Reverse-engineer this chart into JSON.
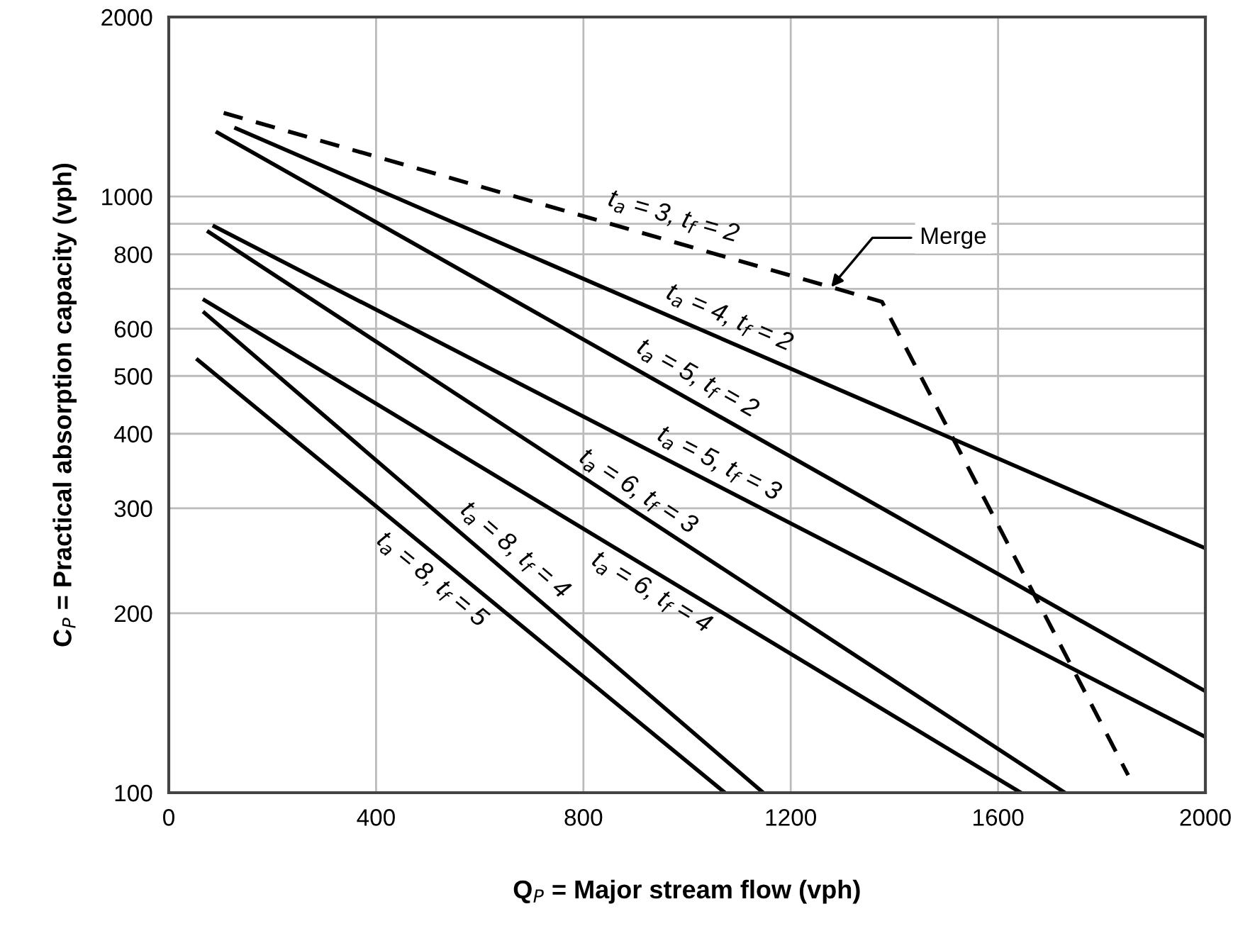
{
  "chart_data": {
    "type": "line",
    "xlabel": "Q$_{P}$ = Major stream flow (vph)",
    "ylabel": "C$_{P}$ = Practical absorption capacity (vph)",
    "log": "y",
    "xlim": [
      0,
      2000
    ],
    "ylim": [
      100,
      2000
    ],
    "xticks": [
      0,
      400,
      800,
      1200,
      1600,
      2000
    ],
    "yticks": [
      100,
      200,
      300,
      400,
      500,
      600,
      {
        "value": 700,
        "label": null
      },
      800,
      {
        "value": 900,
        "label": null
      },
      1000,
      2000
    ],
    "grid": true,
    "marker": "none",
    "series": [
      {
        "name": "t$_{a}$ = 3, t$_{f}$ = 2",
        "color": "#000000",
        "line_style": "dashed",
        "x": [
          106,
          1376,
          1851
        ],
        "values": [
          1381,
          666,
          107
        ]
      },
      {
        "name": "t$_{a}$ = 4, t$_{f}$ = 2",
        "color": "#000000",
        "line_style": "solid",
        "x": [
          130,
          2000
        ],
        "values": [
          1301,
          257
        ]
      },
      {
        "name": "t$_{a}$ = 5, t$_{f}$ = 2",
        "color": "#000000",
        "line_style": "solid",
        "x": [
          94,
          2000
        ],
        "values": [
          1280,
          148
        ]
      },
      {
        "name": "t$_{a}$ = 5, t$_{f}$ = 3",
        "color": "#000000",
        "line_style": "solid",
        "x": [
          88,
          2000
        ],
        "values": [
          891,
          124
        ]
      },
      {
        "name": "t$_{a}$ = 6, t$_{f}$ = 3",
        "color": "#000000",
        "line_style": "solid",
        "x": [
          77,
          1729
        ],
        "values": [
          872,
          100
        ]
      },
      {
        "name": "t$_{a}$ = 6, t$_{f}$ = 4",
        "color": "#000000",
        "line_style": "solid",
        "x": [
          69,
          1644
        ],
        "values": [
          670,
          100
        ]
      },
      {
        "name": "t$_{a}$ = 8, t$_{f}$ = 4",
        "color": "#000000",
        "line_style": "solid",
        "x": [
          69,
          1147
        ],
        "values": [
          638,
          100
        ]
      },
      {
        "name": "t$_{a}$ = 8, t$_{f}$ = 5",
        "color": "#000000",
        "line_style": "solid",
        "x": [
          56,
          1073
        ],
        "values": [
          532,
          100
        ]
      }
    ],
    "annotations": [
      {
        "text": "Merge",
        "x": 1278,
        "y": 705
      }
    ]
  }
}
